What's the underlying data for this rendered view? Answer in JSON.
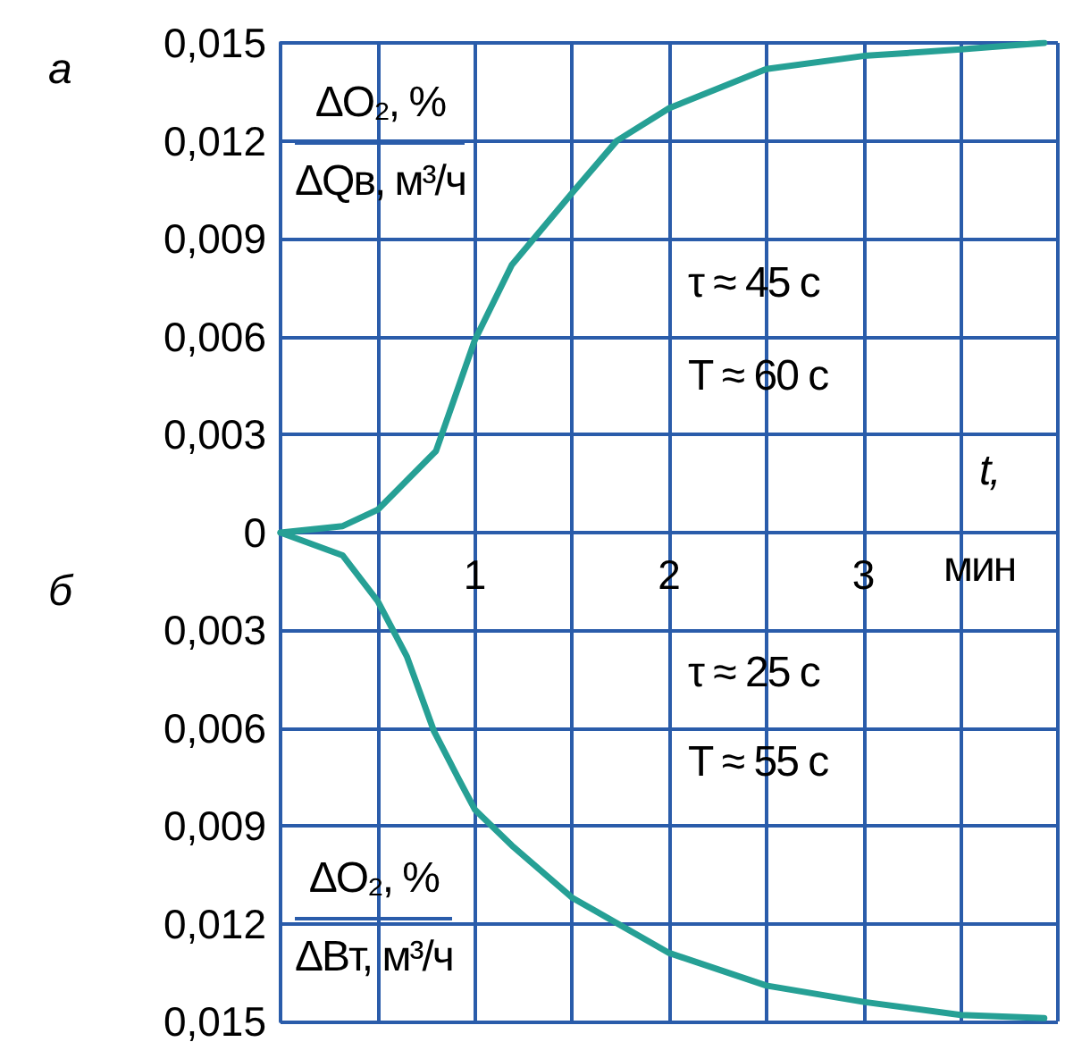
{
  "chart_data": [
    {
      "type": "line",
      "title": "а",
      "ylabel": "ΔO₂, %\nΔQв, м³/ч",
      "xlabel": "t, мин",
      "annotations": [
        "τ ≈ 45 с",
        "T ≈ 60 с"
      ],
      "series": [
        {
          "color": "#26a095",
          "x": [
            0,
            0.32,
            0.5,
            0.8,
            1.0,
            1.19,
            1.5,
            1.73,
            2.0,
            2.5,
            3.0,
            3.5,
            3.93
          ],
          "values": [
            0,
            0.0002,
            0.0007,
            0.0025,
            0.0059,
            0.0082,
            0.0104,
            0.012,
            0.013,
            0.0142,
            0.0146,
            0.0148,
            0.015
          ]
        }
      ],
      "xlim": [
        0,
        4
      ],
      "xticks": [
        {
          "value": 0,
          "label": null
        },
        {
          "value": 0.5,
          "label": null
        },
        1,
        {
          "value": 1.5,
          "label": null
        },
        2,
        {
          "value": 2.5,
          "label": null
        },
        3,
        {
          "value": 3.5,
          "label": null
        },
        {
          "value": 4,
          "label": null
        }
      ],
      "ylim": [
        0,
        0.015
      ],
      "yticks": [
        0,
        {
          "value": 0.003,
          "label": "0,003"
        },
        {
          "value": 0.006,
          "label": "0,006"
        },
        {
          "value": 0.009,
          "label": "0,009"
        },
        {
          "value": 0.012,
          "label": "0,012"
        },
        {
          "value": 0.015,
          "label": "0,015"
        }
      ],
      "grid": true,
      "marker": "none",
      "line_style": "solid"
    },
    {
      "type": "line",
      "title": "б",
      "ylabel": "ΔO₂, %\nΔBт, м³/ч",
      "annotations": [
        "τ ≈ 25 с",
        "T ≈ 55 с"
      ],
      "series": [
        {
          "color": "#26a095",
          "x": [
            0,
            0.32,
            0.5,
            0.65,
            0.79,
            0.92,
            1.0,
            1.19,
            1.5,
            2.0,
            2.5,
            3.0,
            3.5,
            3.93
          ],
          "values": [
            0,
            0.0007,
            0.0021,
            0.0038,
            0.0061,
            0.0076,
            0.0085,
            0.0096,
            0.0112,
            0.0129,
            0.0139,
            0.0144,
            0.0148,
            0.0149
          ]
        }
      ],
      "xlim": [
        0,
        4
      ],
      "xticks": [
        {
          "value": 0,
          "label": null
        },
        {
          "value": 0.5,
          "label": null
        },
        {
          "value": 1,
          "label": null
        },
        {
          "value": 1.5,
          "label": null
        },
        {
          "value": 2,
          "label": null
        },
        {
          "value": 2.5,
          "label": null
        },
        {
          "value": 3,
          "label": null
        },
        {
          "value": 3.5,
          "label": null
        },
        {
          "value": 4,
          "label": null
        }
      ],
      "ylim": [
        0.015,
        0
      ],
      "yticks": [
        {
          "value": 0,
          "label": null
        },
        {
          "value": 0.003,
          "label": "0,003"
        },
        {
          "value": 0.006,
          "label": "0,006"
        },
        {
          "value": 0.009,
          "label": "0,009"
        },
        {
          "value": 0.012,
          "label": "0,012"
        },
        {
          "value": 0.015,
          "label": "0,015"
        }
      ],
      "tick_labels": "y",
      "grid": true,
      "marker": "none",
      "line_style": "solid"
    }
  ]
}
